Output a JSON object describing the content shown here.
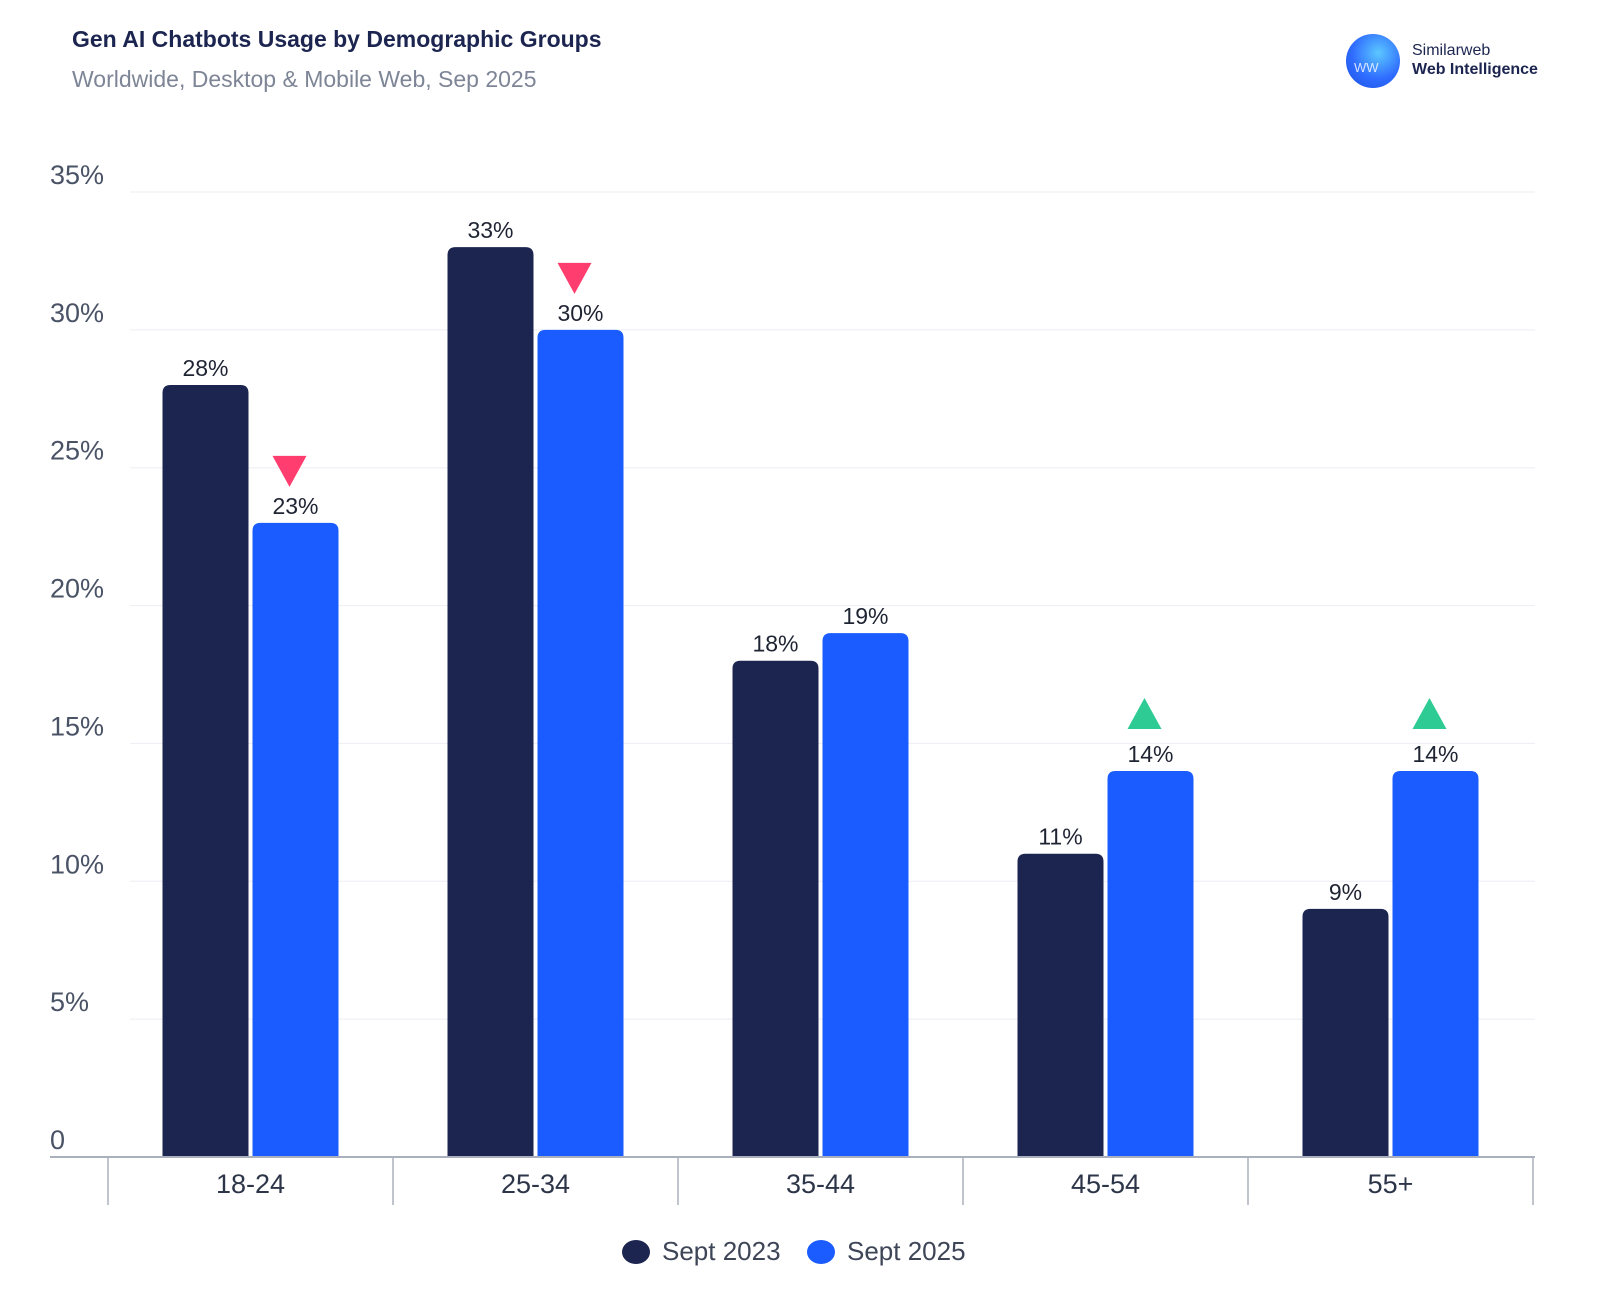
{
  "header": {
    "title": "Gen AI Chatbots Usage by Demographic Groups",
    "subtitle": "Worldwide, Desktop & Mobile Web, Sep 2025"
  },
  "brand": {
    "logo_icon": "similarweb-logo-icon",
    "name": "Similarweb",
    "product": "Web Intelligence"
  },
  "colors": {
    "series_2023": "#1c2550",
    "series_2025": "#1a5cff",
    "down_marker": "#ff3d6e",
    "up_marker": "#2ecb94",
    "grid": "#eceef2",
    "axis": "#aab1bc"
  },
  "chart_data": {
    "type": "bar",
    "title": "Gen AI Chatbots Usage by Demographic Groups",
    "subtitle": "Worldwide, Desktop & Mobile Web, Sep 2025",
    "xlabel": "",
    "ylabel": "",
    "categories": [
      "18-24",
      "25-34",
      "35-44",
      "45-54",
      "55+"
    ],
    "series": [
      {
        "name": "Sept 2023",
        "values": [
          28,
          33,
          18,
          11,
          9
        ],
        "labels": [
          "28%",
          "33%",
          "18%",
          "11%",
          "9%"
        ]
      },
      {
        "name": "Sept 2025",
        "values": [
          23,
          30,
          19,
          14,
          14
        ],
        "labels": [
          "23%",
          "30%",
          "19%",
          "14%",
          "14%"
        ]
      }
    ],
    "change_markers": [
      "down",
      "down",
      "none",
      "up",
      "up"
    ],
    "ylim": [
      0,
      35
    ],
    "yticks": [
      0,
      5,
      10,
      15,
      20,
      25,
      30,
      35
    ],
    "ytick_labels": [
      "0",
      "5%",
      "10%",
      "15%",
      "20%",
      "25%",
      "30%",
      "35%"
    ],
    "grid": true,
    "legend_position": "bottom-center"
  }
}
